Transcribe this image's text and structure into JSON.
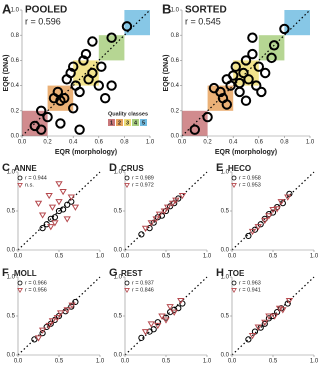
{
  "quality_classes": {
    "title": "Quality classes",
    "classes": [
      {
        "label": "1",
        "color": "#c9777a",
        "range": [
          0,
          0.2
        ]
      },
      {
        "label": "2",
        "color": "#e8a35f",
        "range": [
          0.2,
          0.4
        ]
      },
      {
        "label": "3",
        "color": "#f0de78",
        "range": [
          0.4,
          0.6
        ]
      },
      {
        "label": "4",
        "color": "#a9cf80",
        "range": [
          0.6,
          0.8
        ]
      },
      {
        "label": "5",
        "color": "#72bde2",
        "range": [
          0.8,
          1.0
        ]
      }
    ]
  },
  "chart_data": [
    {
      "type": "scatter",
      "panel": "A",
      "title": "POOLED",
      "subtitle": "r = 0.596",
      "xlabel": "EQR (morphology)",
      "ylabel": "EQR (DNA)",
      "show_classes": true,
      "class_legend": true,
      "xlim": [
        0,
        1
      ],
      "ylim": [
        0,
        1
      ],
      "xticks": [
        {
          "value": 0,
          "label": "0.0"
        },
        {
          "value": 0.2,
          "label": "0.2"
        },
        {
          "value": 0.4,
          "label": "0.4"
        },
        {
          "value": 0.6,
          "label": "0.6"
        },
        {
          "value": 0.8,
          "label": "0.8"
        },
        {
          "value": 1,
          "label": "1.0"
        }
      ],
      "yticks": [
        {
          "value": 0,
          "label": "0.0"
        },
        {
          "value": 0.2,
          "label": "0.2"
        },
        {
          "value": 0.4,
          "label": "0.4"
        },
        {
          "value": 0.6,
          "label": "0.6"
        },
        {
          "value": 0.8,
          "label": "0.8"
        },
        {
          "value": 1,
          "label": "1.0"
        }
      ],
      "series": [
        {
          "marker": "circle",
          "color": "#000000",
          "x": [
            0.15,
            0.1,
            0.15,
            0.2,
            0.28,
            0.3,
            0.33,
            0.35,
            0.38,
            0.4,
            0.42,
            0.45,
            0.48,
            0.5,
            0.52,
            0.55,
            0.6,
            0.62,
            0.65,
            0.7,
            0.3,
            0.45,
            0.55,
            0.7,
            0.82,
            0.25,
            0.4
          ],
          "y": [
            0.2,
            0.08,
            0.05,
            0.15,
            0.35,
            0.28,
            0.3,
            0.45,
            0.5,
            0.55,
            0.4,
            0.35,
            0.6,
            0.65,
            0.45,
            0.5,
            0.4,
            0.55,
            0.3,
            0.4,
            0.1,
            0.05,
            0.75,
            0.78,
            0.87,
            0.3,
            0.22
          ]
        }
      ]
    },
    {
      "type": "scatter",
      "panel": "B",
      "title": "SORTED",
      "subtitle": "r = 0.545",
      "xlabel": "EQR (morphology)",
      "ylabel": "EQR (DNA)",
      "show_classes": true,
      "class_legend": false,
      "xlim": [
        0,
        1
      ],
      "ylim": [
        0,
        1
      ],
      "xticks": [
        {
          "value": 0,
          "label": "0.0"
        },
        {
          "value": 0.2,
          "label": "0.2"
        },
        {
          "value": 0.4,
          "label": "0.4"
        },
        {
          "value": 0.6,
          "label": "0.6"
        },
        {
          "value": 0.8,
          "label": "0.8"
        },
        {
          "value": 1,
          "label": "1.0"
        }
      ],
      "yticks": [
        {
          "value": 0,
          "label": "0.0"
        },
        {
          "value": 0.2,
          "label": "0.2"
        },
        {
          "value": 0.4,
          "label": "0.4"
        },
        {
          "value": 0.6,
          "label": "0.6"
        },
        {
          "value": 0.8,
          "label": "0.8"
        },
        {
          "value": 1,
          "label": "1.0"
        }
      ],
      "series": [
        {
          "marker": "circle",
          "color": "#000000",
          "x": [
            0.1,
            0.2,
            0.3,
            0.32,
            0.35,
            0.38,
            0.4,
            0.42,
            0.45,
            0.48,
            0.5,
            0.52,
            0.55,
            0.58,
            0.6,
            0.62,
            0.65,
            0.7,
            0.35,
            0.5,
            0.55,
            0.72,
            0.8,
            0.25,
            0.45
          ],
          "y": [
            0.05,
            0.15,
            0.35,
            0.3,
            0.45,
            0.4,
            0.48,
            0.55,
            0.42,
            0.5,
            0.6,
            0.45,
            0.65,
            0.4,
            0.55,
            0.35,
            0.5,
            0.62,
            0.25,
            0.28,
            0.78,
            0.72,
            0.85,
            0.38,
            0.35
          ]
        }
      ]
    },
    {
      "type": "scatter",
      "panel": "C",
      "title": "ANNE",
      "xlim": [
        0,
        1
      ],
      "ylim": [
        0,
        1
      ],
      "xticks": [
        {
          "value": 0,
          "label": "0.0"
        },
        {
          "value": 0.5,
          "label": "0.5"
        },
        {
          "value": 1,
          "label": "1.0"
        }
      ],
      "yticks": [
        {
          "value": 0,
          "label": "0.0"
        },
        {
          "value": 0.5,
          "label": "0.5"
        },
        {
          "value": 1,
          "label": "1.0"
        }
      ],
      "series": [
        {
          "name": "r = 0.944",
          "marker": "circle",
          "color": "#000000",
          "x": [
            0.3,
            0.35,
            0.4,
            0.45,
            0.5,
            0.55,
            0.6,
            0.65
          ],
          "y": [
            0.28,
            0.33,
            0.4,
            0.42,
            0.5,
            0.52,
            0.58,
            0.62
          ]
        },
        {
          "name": "n.s.",
          "marker": "triangle",
          "color": "#b5484d",
          "x": [
            0.25,
            0.3,
            0.38,
            0.42,
            0.45,
            0.5,
            0.55,
            0.6,
            0.65,
            0.7,
            0.5,
            0.4
          ],
          "y": [
            0.6,
            0.45,
            0.7,
            0.55,
            0.35,
            0.62,
            0.75,
            0.4,
            0.68,
            0.55,
            0.85,
            0.3
          ]
        }
      ]
    },
    {
      "type": "scatter",
      "panel": "D",
      "title": "CRUS",
      "xlim": [
        0,
        1
      ],
      "ylim": [
        0,
        1
      ],
      "xticks": [
        {
          "value": 0,
          "label": "0.0"
        },
        {
          "value": 0.5,
          "label": "0.5"
        },
        {
          "value": 1,
          "label": "1.0"
        }
      ],
      "yticks": [
        {
          "value": 0,
          "label": "0.0"
        },
        {
          "value": 0.5,
          "label": "0.5"
        },
        {
          "value": 1,
          "label": "1.0"
        }
      ],
      "series": [
        {
          "name": "r = 0.989",
          "marker": "circle",
          "color": "#000000",
          "x": [
            0.2,
            0.3,
            0.35,
            0.4,
            0.45,
            0.5,
            0.55,
            0.6,
            0.65
          ],
          "y": [
            0.2,
            0.28,
            0.35,
            0.42,
            0.44,
            0.5,
            0.56,
            0.6,
            0.66
          ]
        },
        {
          "name": "r = 0.972",
          "marker": "triangle",
          "color": "#b5484d",
          "x": [
            0.25,
            0.32,
            0.38,
            0.42,
            0.48,
            0.52,
            0.58,
            0.62,
            0.7
          ],
          "y": [
            0.28,
            0.35,
            0.4,
            0.46,
            0.5,
            0.55,
            0.6,
            0.64,
            0.7
          ]
        }
      ]
    },
    {
      "type": "scatter",
      "panel": "E",
      "title": "HECO",
      "xlim": [
        0,
        1
      ],
      "ylim": [
        0,
        1
      ],
      "xticks": [
        {
          "value": 0,
          "label": "0.0"
        },
        {
          "value": 0.5,
          "label": "0.5"
        },
        {
          "value": 1,
          "label": "1.0"
        }
      ],
      "yticks": [
        {
          "value": 0,
          "label": "0.0"
        },
        {
          "value": 0.5,
          "label": "0.5"
        },
        {
          "value": 1,
          "label": "1.0"
        }
      ],
      "series": [
        {
          "name": "r = 0.958",
          "marker": "circle",
          "color": "#000000",
          "x": [
            0.2,
            0.28,
            0.35,
            0.4,
            0.45,
            0.5,
            0.55,
            0.62,
            0.7
          ],
          "y": [
            0.18,
            0.26,
            0.33,
            0.4,
            0.46,
            0.48,
            0.55,
            0.6,
            0.72
          ]
        },
        {
          "name": "r = 0.953",
          "marker": "triangle",
          "color": "#b5484d",
          "x": [
            0.25,
            0.32,
            0.4,
            0.45,
            0.5,
            0.55,
            0.6,
            0.68
          ],
          "y": [
            0.24,
            0.3,
            0.38,
            0.44,
            0.52,
            0.53,
            0.62,
            0.68
          ]
        }
      ]
    },
    {
      "type": "scatter",
      "panel": "F",
      "title": "MOLL",
      "xlim": [
        0,
        1
      ],
      "ylim": [
        0,
        1
      ],
      "xticks": [
        {
          "value": 0,
          "label": "0.0"
        },
        {
          "value": 0.5,
          "label": "0.5"
        },
        {
          "value": 1,
          "label": "1.0"
        }
      ],
      "yticks": [
        {
          "value": 0,
          "label": "0.0"
        },
        {
          "value": 0.5,
          "label": "0.5"
        },
        {
          "value": 1,
          "label": "1.0"
        }
      ],
      "series": [
        {
          "name": "r = 0.966",
          "marker": "circle",
          "color": "#000000",
          "x": [
            0.2,
            0.3,
            0.35,
            0.4,
            0.45,
            0.5,
            0.58,
            0.65,
            0.7
          ],
          "y": [
            0.2,
            0.28,
            0.36,
            0.4,
            0.45,
            0.5,
            0.56,
            0.62,
            0.68
          ]
        },
        {
          "name": "r = 0.956",
          "marker": "triangle",
          "color": "#b5484d",
          "x": [
            0.25,
            0.3,
            0.38,
            0.42,
            0.48,
            0.52,
            0.6,
            0.66
          ],
          "y": [
            0.22,
            0.32,
            0.38,
            0.44,
            0.48,
            0.54,
            0.58,
            0.64
          ]
        }
      ]
    },
    {
      "type": "scatter",
      "panel": "G",
      "title": "REST",
      "xlim": [
        0,
        1
      ],
      "ylim": [
        0,
        1
      ],
      "xticks": [
        {
          "value": 0,
          "label": "0.0"
        },
        {
          "value": 0.5,
          "label": "0.5"
        },
        {
          "value": 1,
          "label": "1.0"
        }
      ],
      "yticks": [
        {
          "value": 0,
          "label": "0.0"
        },
        {
          "value": 0.5,
          "label": "0.5"
        },
        {
          "value": 1,
          "label": "1.0"
        }
      ],
      "series": [
        {
          "name": "r = 0.937",
          "marker": "circle",
          "color": "#000000",
          "x": [
            0.2,
            0.3,
            0.35,
            0.4,
            0.5,
            0.55,
            0.6,
            0.65,
            0.7
          ],
          "y": [
            0.22,
            0.3,
            0.33,
            0.42,
            0.48,
            0.55,
            0.58,
            0.6,
            0.66
          ]
        },
        {
          "name": "r = 0.846",
          "marker": "triangle",
          "color": "#b5484d",
          "x": [
            0.25,
            0.32,
            0.4,
            0.45,
            0.5,
            0.55,
            0.6,
            0.68
          ],
          "y": [
            0.3,
            0.4,
            0.38,
            0.5,
            0.45,
            0.62,
            0.55,
            0.7
          ]
        }
      ]
    },
    {
      "type": "scatter",
      "panel": "H",
      "title": "TOE",
      "xlim": [
        0,
        1
      ],
      "ylim": [
        0,
        1
      ],
      "xticks": [
        {
          "value": 0,
          "label": "0.0"
        },
        {
          "value": 0.5,
          "label": "0.5"
        },
        {
          "value": 1,
          "label": "1.0"
        }
      ],
      "yticks": [
        {
          "value": 0,
          "label": "0.0"
        },
        {
          "value": 0.5,
          "label": "0.5"
        },
        {
          "value": 1,
          "label": "1.0"
        }
      ],
      "series": [
        {
          "name": "r = 0.963",
          "marker": "circle",
          "color": "#000000",
          "x": [
            0.2,
            0.28,
            0.35,
            0.4,
            0.45,
            0.5,
            0.55,
            0.6,
            0.68
          ],
          "y": [
            0.2,
            0.3,
            0.35,
            0.4,
            0.47,
            0.5,
            0.55,
            0.6,
            0.66
          ]
        },
        {
          "name": "r = 0.941",
          "marker": "triangle",
          "color": "#b5484d",
          "x": [
            0.25,
            0.32,
            0.4,
            0.45,
            0.52,
            0.58,
            0.62,
            0.7
          ],
          "y": [
            0.25,
            0.36,
            0.42,
            0.5,
            0.5,
            0.6,
            0.58,
            0.7
          ]
        }
      ]
    }
  ]
}
